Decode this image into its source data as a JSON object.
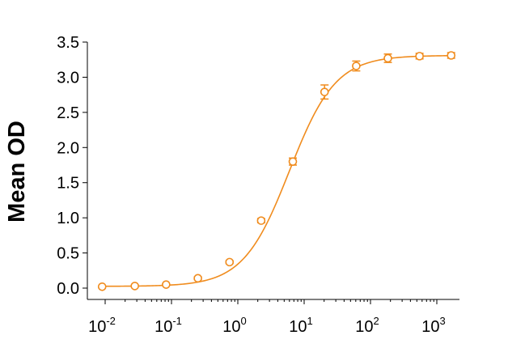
{
  "chart_data": {
    "type": "scatter",
    "title": "",
    "xlabel": "",
    "ylabel": "Mean OD",
    "x_scale": "log",
    "xlim": [
      0.005,
      3000
    ],
    "ylim": [
      0,
      3.5
    ],
    "grid": false,
    "legend": "none",
    "y_ticks": [
      {
        "value": 0.0,
        "label": "0.0"
      },
      {
        "value": 0.5,
        "label": "0.5"
      },
      {
        "value": 1.0,
        "label": "1.0"
      },
      {
        "value": 1.5,
        "label": "1.5"
      },
      {
        "value": 2.0,
        "label": "2.0"
      },
      {
        "value": 2.5,
        "label": "2.5"
      },
      {
        "value": 3.0,
        "label": "3.0"
      },
      {
        "value": 3.5,
        "label": "3.5"
      }
    ],
    "x_ticks": [
      {
        "value": 0.01,
        "base": "10",
        "exp": "-2"
      },
      {
        "value": 0.1,
        "base": "10",
        "exp": "-1"
      },
      {
        "value": 1,
        "base": "10",
        "exp": "0"
      },
      {
        "value": 10,
        "base": "10",
        "exp": "1"
      },
      {
        "value": 100,
        "base": "10",
        "exp": "2"
      },
      {
        "value": 1000,
        "base": "10",
        "exp": "3"
      }
    ],
    "series": [
      {
        "color": "#f08c1e",
        "marker": "open-circle",
        "points": [
          {
            "x": 0.009,
            "y": 0.02,
            "err": 0.0
          },
          {
            "x": 0.028,
            "y": 0.03,
            "err": 0.0
          },
          {
            "x": 0.083,
            "y": 0.05,
            "err": 0.01
          },
          {
            "x": 0.25,
            "y": 0.14,
            "err": 0.02
          },
          {
            "x": 0.75,
            "y": 0.37,
            "err": 0.02
          },
          {
            "x": 2.25,
            "y": 0.96,
            "err": 0.03
          },
          {
            "x": 6.75,
            "y": 1.8,
            "err": 0.05
          },
          {
            "x": 20.3,
            "y": 2.79,
            "err": 0.1
          },
          {
            "x": 61,
            "y": 3.16,
            "err": 0.07
          },
          {
            "x": 183,
            "y": 3.27,
            "err": 0.06
          },
          {
            "x": 549,
            "y": 3.3,
            "err": 0.04
          },
          {
            "x": 1646,
            "y": 3.31,
            "err": 0.04
          }
        ],
        "fit": {
          "model": "4PL",
          "bottom": 0.025,
          "top": 3.31,
          "ec50": 6.0,
          "hill": 1.25
        }
      }
    ]
  }
}
